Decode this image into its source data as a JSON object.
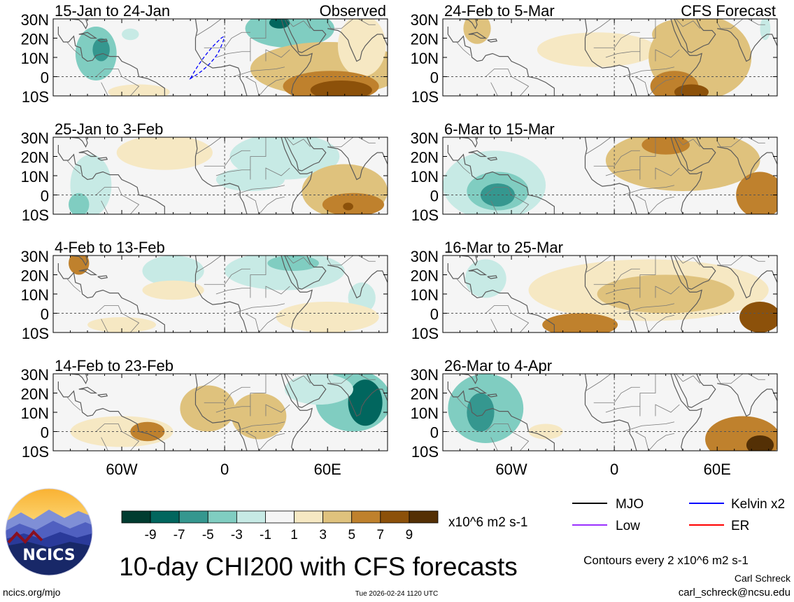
{
  "panels": [
    {
      "period": "15-Jan to 24-Jan",
      "tag": "Observed",
      "blobs": [
        {
          "lon": -75,
          "lat": 12,
          "rx": 12,
          "ry": 14,
          "value": -4
        },
        {
          "lon": -72,
          "lat": 14,
          "rx": 5,
          "ry": 6,
          "value": -7
        },
        {
          "lon": -55,
          "lat": 22,
          "rx": 5,
          "ry": 3,
          "value": -2
        },
        {
          "lon": 38,
          "lat": 25,
          "rx": 26,
          "ry": 10,
          "value": -4
        },
        {
          "lon": 32,
          "lat": 28,
          "rx": 6,
          "ry": 3,
          "value": -8
        },
        {
          "lon": 60,
          "lat": 4,
          "rx": 45,
          "ry": 14,
          "value": 3
        },
        {
          "lon": 80,
          "lat": 16,
          "rx": 14,
          "ry": 16,
          "value": 2
        },
        {
          "lon": 62,
          "lat": -5,
          "rx": 28,
          "ry": 8,
          "value": 6
        },
        {
          "lon": 68,
          "lat": -7,
          "rx": 18,
          "ry": 5,
          "value": 8
        },
        {
          "lon": -50,
          "lat": -8,
          "rx": 18,
          "ry": 4,
          "value": 1
        }
      ],
      "kelvin_contour": true
    },
    {
      "period": "24-Feb to 5-Mar",
      "tag": "CFS Forecast",
      "blobs": [
        {
          "lon": -80,
          "lat": 25,
          "rx": 8,
          "ry": 8,
          "value": 3
        },
        {
          "lon": -10,
          "lat": 14,
          "rx": 35,
          "ry": 9,
          "value": 2
        },
        {
          "lon": 50,
          "lat": 10,
          "rx": 30,
          "ry": 22,
          "value": 3
        },
        {
          "lon": 40,
          "lat": 22,
          "rx": 18,
          "ry": 8,
          "value": 4
        },
        {
          "lon": 35,
          "lat": -5,
          "rx": 14,
          "ry": 8,
          "value": 6
        },
        {
          "lon": 45,
          "lat": -8,
          "rx": 10,
          "ry": 4,
          "value": 7
        },
        {
          "lon": 88,
          "lat": 25,
          "rx": 3,
          "ry": 6,
          "value": -2
        }
      ]
    },
    {
      "period": "25-Jan to 3-Feb",
      "tag": "",
      "blobs": [
        {
          "lon": -78,
          "lat": 5,
          "rx": 12,
          "ry": 16,
          "value": -3
        },
        {
          "lon": -85,
          "lat": -5,
          "rx": 6,
          "ry": 6,
          "value": -4
        },
        {
          "lon": -35,
          "lat": 22,
          "rx": 28,
          "ry": 9,
          "value": 2
        },
        {
          "lon": 35,
          "lat": 20,
          "rx": 32,
          "ry": 12,
          "value": -3
        },
        {
          "lon": 15,
          "lat": 8,
          "rx": 20,
          "ry": 6,
          "value": -2
        },
        {
          "lon": 70,
          "lat": 2,
          "rx": 25,
          "ry": 14,
          "value": 3
        },
        {
          "lon": 75,
          "lat": -5,
          "rx": 18,
          "ry": 6,
          "value": 6
        },
        {
          "lon": 72,
          "lat": -6,
          "rx": 3,
          "ry": 2,
          "value": 8
        }
      ]
    },
    {
      "period": "6-Mar to 15-Mar",
      "tag": "",
      "blobs": [
        {
          "lon": -70,
          "lat": 5,
          "rx": 30,
          "ry": 18,
          "value": -2
        },
        {
          "lon": -68,
          "lat": 2,
          "rx": 18,
          "ry": 10,
          "value": -4
        },
        {
          "lon": -68,
          "lat": 0,
          "rx": 10,
          "ry": 6,
          "value": -6
        },
        {
          "lon": 40,
          "lat": 18,
          "rx": 45,
          "ry": 16,
          "value": 3
        },
        {
          "lon": 30,
          "lat": 26,
          "rx": 14,
          "ry": 5,
          "value": 6
        },
        {
          "lon": 85,
          "lat": 0,
          "rx": 14,
          "ry": 12,
          "value": 5
        }
      ]
    },
    {
      "period": "4-Feb to 13-Feb",
      "tag": "",
      "blobs": [
        {
          "lon": -85,
          "lat": 26,
          "rx": 6,
          "ry": 6,
          "value": 5
        },
        {
          "lon": -30,
          "lat": 22,
          "rx": 18,
          "ry": 8,
          "value": -2
        },
        {
          "lon": 35,
          "lat": 22,
          "rx": 35,
          "ry": 10,
          "value": -3
        },
        {
          "lon": 40,
          "lat": 26,
          "rx": 15,
          "ry": 4,
          "value": -5
        },
        {
          "lon": 80,
          "lat": 8,
          "rx": 8,
          "ry": 8,
          "value": -3
        },
        {
          "lon": -30,
          "lat": 12,
          "rx": 18,
          "ry": 5,
          "value": 2
        },
        {
          "lon": 60,
          "lat": -2,
          "rx": 30,
          "ry": 8,
          "value": 2
        },
        {
          "lon": -60,
          "lat": -6,
          "rx": 20,
          "ry": 4,
          "value": 1
        }
      ]
    },
    {
      "period": "16-Mar to 25-Mar",
      "tag": "",
      "blobs": [
        {
          "lon": -75,
          "lat": 18,
          "rx": 12,
          "ry": 10,
          "value": -2
        },
        {
          "lon": 20,
          "lat": 12,
          "rx": 70,
          "ry": 16,
          "value": 2
        },
        {
          "lon": 30,
          "lat": 10,
          "rx": 40,
          "ry": 10,
          "value": 4
        },
        {
          "lon": -20,
          "lat": -6,
          "rx": 22,
          "ry": 6,
          "value": 6
        },
        {
          "lon": 85,
          "lat": -2,
          "rx": 12,
          "ry": 8,
          "value": 7
        }
      ]
    },
    {
      "period": "14-Feb to 23-Feb",
      "tag": "",
      "blobs": [
        {
          "lon": -60,
          "lat": 0,
          "rx": 30,
          "ry": 8,
          "value": 2
        },
        {
          "lon": -45,
          "lat": 0,
          "rx": 10,
          "ry": 5,
          "value": 5
        },
        {
          "lon": -10,
          "lat": 12,
          "rx": 16,
          "ry": 12,
          "value": 3
        },
        {
          "lon": 20,
          "lat": 8,
          "rx": 16,
          "ry": 12,
          "value": 3
        },
        {
          "lon": 75,
          "lat": 16,
          "rx": 22,
          "ry": 16,
          "value": -5
        },
        {
          "lon": 82,
          "lat": 15,
          "rx": 10,
          "ry": 12,
          "value": -9
        },
        {
          "lon": 55,
          "lat": 22,
          "rx": 20,
          "ry": 8,
          "value": -2
        }
      ]
    },
    {
      "period": "26-Mar to 4-Apr",
      "tag": "",
      "blobs": [
        {
          "lon": -75,
          "lat": 12,
          "rx": 22,
          "ry": 18,
          "value": -4
        },
        {
          "lon": -78,
          "lat": 10,
          "rx": 8,
          "ry": 10,
          "value": -7
        },
        {
          "lon": -40,
          "lat": 0,
          "rx": 10,
          "ry": 4,
          "value": 2
        },
        {
          "lon": 75,
          "lat": -4,
          "rx": 22,
          "ry": 12,
          "value": 5
        },
        {
          "lon": 85,
          "lat": -7,
          "rx": 8,
          "ry": 5,
          "value": 9
        }
      ]
    }
  ],
  "lat_ticks": [
    "30N",
    "20N",
    "10N",
    "0",
    "10S"
  ],
  "lon_ticks": [
    "60W",
    "0",
    "60E"
  ],
  "colorbar": {
    "colors": [
      "#003c30",
      "#01665e",
      "#35978f",
      "#80cdc1",
      "#c7eae5",
      "#f5f5f5",
      "#f6e8c3",
      "#dfc27d",
      "#bf812d",
      "#8c510a",
      "#543005"
    ],
    "labels": [
      "-9",
      "-7",
      "-5",
      "-3",
      "-1",
      "1",
      "3",
      "5",
      "7",
      "9"
    ],
    "units": "x10^6 m2 s-1"
  },
  "legend": [
    {
      "label": "MJO",
      "color": "#000000"
    },
    {
      "label": "Kelvin x2",
      "color": "#0000ff"
    },
    {
      "label": "Low",
      "color": "#9b30ff"
    },
    {
      "label": "ER",
      "color": "#ff0000"
    }
  ],
  "title": "10-day CHI200 with CFS forecasts",
  "contour_note": "Contours every 2 x10^6 m2 s-1",
  "author": "Carl Schreck",
  "email": "carl_schreck@ncsu.edu",
  "website": "ncics.org/mjo",
  "timestamp": "Tue 2026-02-24 1120 UTC",
  "logo_text": "NCICS"
}
